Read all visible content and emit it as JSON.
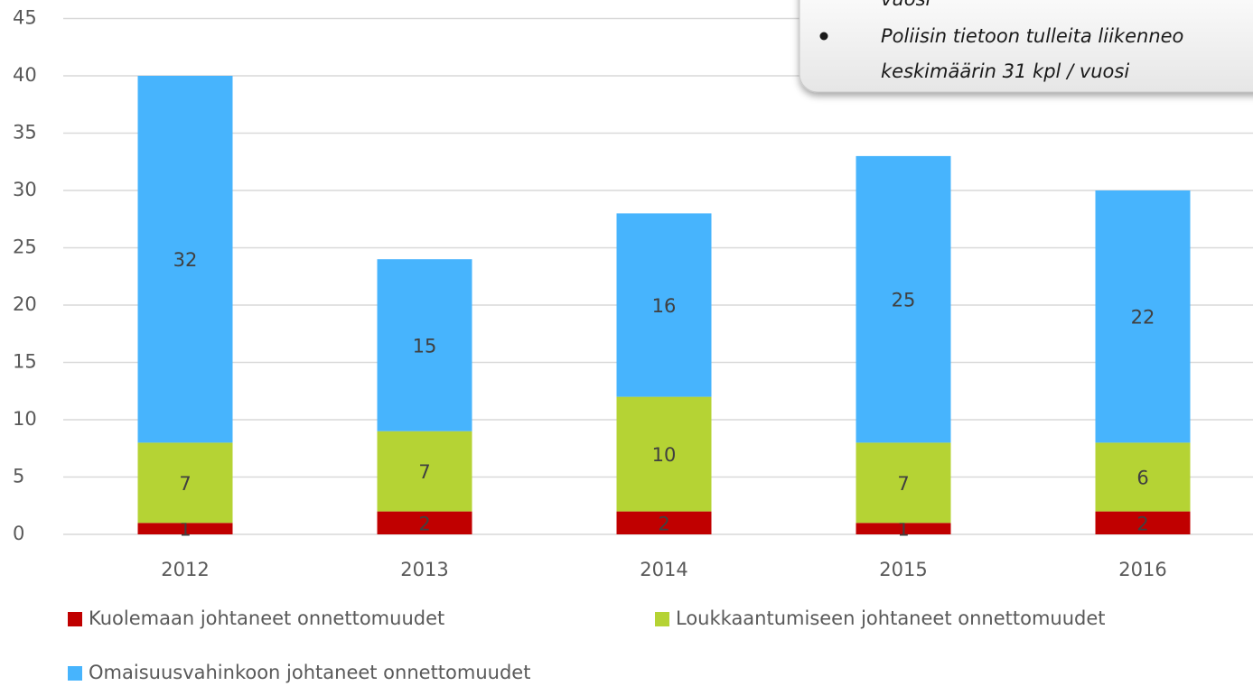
{
  "chart_data": {
    "type": "stacked_bar",
    "categories": [
      "2012",
      "2013",
      "2014",
      "2015",
      "2016"
    ],
    "series": [
      {
        "name": "Kuolemaan johtaneet onnettomuudet",
        "color": "#c00000",
        "values": [
          1,
          2,
          2,
          1,
          2
        ]
      },
      {
        "name": "Loukkaantumiseen johtaneet onnettomuudet",
        "color": "#b5d334",
        "values": [
          7,
          7,
          10,
          7,
          6
        ]
      },
      {
        "name": "Omaisuusvahinkoon johtaneet onnettomuudet",
        "color": "#47b4fd",
        "values": [
          32,
          15,
          16,
          25,
          22
        ]
      }
    ],
    "ylim": [
      0,
      45
    ],
    "yticks": [
      0,
      5,
      10,
      15,
      20,
      25,
      30,
      35,
      40,
      45
    ],
    "grid": true,
    "legend": "bottom",
    "annotation": [
      "vuosi",
      "Poliisin tietoon tulleita liikenneo",
      "keskimäärin 31 kpl / vuosi"
    ]
  }
}
